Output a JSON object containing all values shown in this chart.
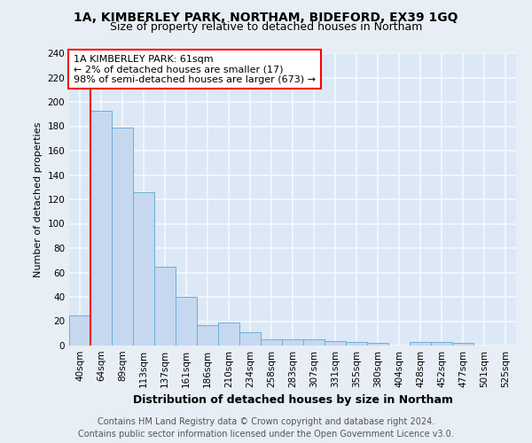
{
  "title": "1A, KIMBERLEY PARK, NORTHAM, BIDEFORD, EX39 1GQ",
  "subtitle": "Size of property relative to detached houses in Northam",
  "xlabel": "Distribution of detached houses by size in Northam",
  "ylabel": "Number of detached properties",
  "footer_line1": "Contains HM Land Registry data © Crown copyright and database right 2024.",
  "footer_line2": "Contains public sector information licensed under the Open Government Licence v3.0.",
  "annotation_line1": "1A KIMBERLEY PARK: 61sqm",
  "annotation_line2": "← 2% of detached houses are smaller (17)",
  "annotation_line3": "98% of semi-detached houses are larger (673) →",
  "bar_labels": [
    "40sqm",
    "64sqm",
    "89sqm",
    "113sqm",
    "137sqm",
    "161sqm",
    "186sqm",
    "210sqm",
    "234sqm",
    "258sqm",
    "283sqm",
    "307sqm",
    "331sqm",
    "355sqm",
    "380sqm",
    "404sqm",
    "428sqm",
    "452sqm",
    "477sqm",
    "501sqm",
    "525sqm"
  ],
  "bar_values": [
    25,
    193,
    179,
    126,
    65,
    40,
    17,
    19,
    11,
    5,
    5,
    5,
    4,
    3,
    2,
    0,
    3,
    3,
    2,
    0,
    0
  ],
  "bar_color": "#c5d8f0",
  "bar_edge_color": "#6baed6",
  "red_line_index": 1,
  "ylim": [
    0,
    240
  ],
  "yticks": [
    0,
    20,
    40,
    60,
    80,
    100,
    120,
    140,
    160,
    180,
    200,
    220,
    240
  ],
  "fig_bg": "#e8eef5",
  "plot_bg": "#dce8f5",
  "grid_color": "#f5f8ff",
  "title_fontsize": 10,
  "subtitle_fontsize": 9,
  "xlabel_fontsize": 9,
  "ylabel_fontsize": 8,
  "tick_fontsize": 7.5,
  "footer_fontsize": 7,
  "annotation_fontsize": 8
}
